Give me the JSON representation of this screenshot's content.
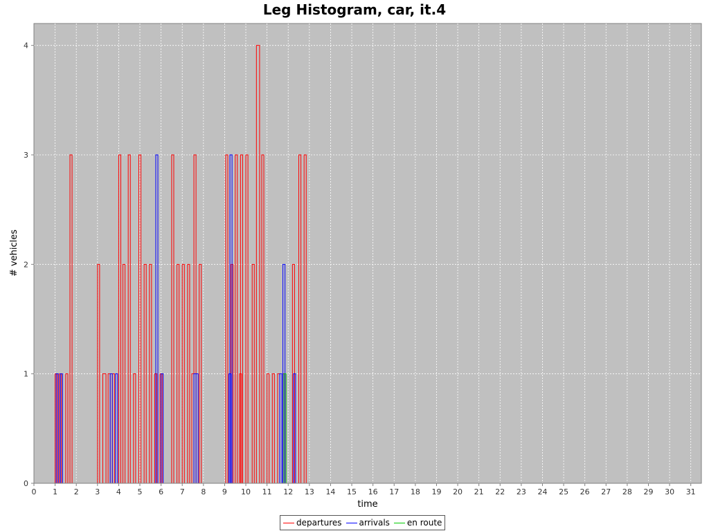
{
  "chart_data": {
    "type": "line",
    "title": "Leg Histogram, car, it.4",
    "xlabel": "time",
    "ylabel": "# vehicles",
    "xlim": [
      0,
      31.5
    ],
    "ylim": [
      0,
      4.2
    ],
    "xticks": [
      0,
      1,
      2,
      3,
      4,
      5,
      6,
      7,
      8,
      9,
      10,
      11,
      12,
      13,
      14,
      15,
      16,
      17,
      18,
      19,
      20,
      21,
      22,
      23,
      24,
      25,
      26,
      27,
      28,
      29,
      30,
      31
    ],
    "yticks": [
      0,
      1,
      2,
      3,
      4
    ],
    "grid": true,
    "legend_position": "bottom",
    "series": [
      {
        "name": "departures",
        "color": "#ff0000",
        "bins": [
          [
            1.0,
            1.1,
            1
          ],
          [
            1.2,
            1.3,
            1
          ],
          [
            1.5,
            1.6,
            1
          ],
          [
            1.7,
            1.8,
            3
          ],
          [
            3.0,
            3.1,
            2
          ],
          [
            3.25,
            3.4,
            1
          ],
          [
            3.5,
            3.6,
            1
          ],
          [
            3.7,
            3.8,
            1
          ],
          [
            4.0,
            4.1,
            3
          ],
          [
            4.2,
            4.3,
            2
          ],
          [
            4.45,
            4.55,
            3
          ],
          [
            4.7,
            4.8,
            1
          ],
          [
            4.95,
            5.05,
            3
          ],
          [
            5.2,
            5.3,
            2
          ],
          [
            5.45,
            5.55,
            2
          ],
          [
            5.7,
            5.8,
            1
          ],
          [
            5.95,
            6.05,
            1
          ],
          [
            6.5,
            6.6,
            3
          ],
          [
            6.75,
            6.85,
            2
          ],
          [
            7.0,
            7.1,
            2
          ],
          [
            7.25,
            7.35,
            2
          ],
          [
            7.45,
            7.55,
            1
          ],
          [
            7.55,
            7.65,
            3
          ],
          [
            7.8,
            7.9,
            2
          ],
          [
            9.05,
            9.15,
            3
          ],
          [
            9.3,
            9.4,
            2
          ],
          [
            9.5,
            9.6,
            3
          ],
          [
            9.7,
            9.8,
            1
          ],
          [
            9.75,
            9.85,
            3
          ],
          [
            10.0,
            10.1,
            3
          ],
          [
            10.3,
            10.4,
            2
          ],
          [
            10.5,
            10.65,
            4
          ],
          [
            10.75,
            10.85,
            3
          ],
          [
            11.0,
            11.1,
            1
          ],
          [
            11.25,
            11.35,
            1
          ],
          [
            11.5,
            11.6,
            1
          ],
          [
            11.75,
            11.85,
            1
          ],
          [
            12.2,
            12.3,
            2
          ],
          [
            12.5,
            12.6,
            3
          ],
          [
            12.75,
            12.85,
            3
          ]
        ]
      },
      {
        "name": "arrivals",
        "color": "#0000ff",
        "bins": [
          [
            1.05,
            1.15,
            1
          ],
          [
            1.25,
            1.35,
            1
          ],
          [
            3.6,
            3.7,
            1
          ],
          [
            3.85,
            3.95,
            1
          ],
          [
            5.75,
            5.85,
            3
          ],
          [
            6.0,
            6.1,
            1
          ],
          [
            7.55,
            7.65,
            1
          ],
          [
            7.65,
            7.75,
            1
          ],
          [
            9.2,
            9.3,
            1
          ],
          [
            9.25,
            9.35,
            3
          ],
          [
            11.6,
            11.7,
            1
          ],
          [
            11.75,
            11.85,
            2
          ],
          [
            12.25,
            12.35,
            1
          ]
        ]
      },
      {
        "name": "en route",
        "color": "#00cc00",
        "bins": [
          [
            11.8,
            11.9,
            1
          ]
        ]
      }
    ]
  }
}
